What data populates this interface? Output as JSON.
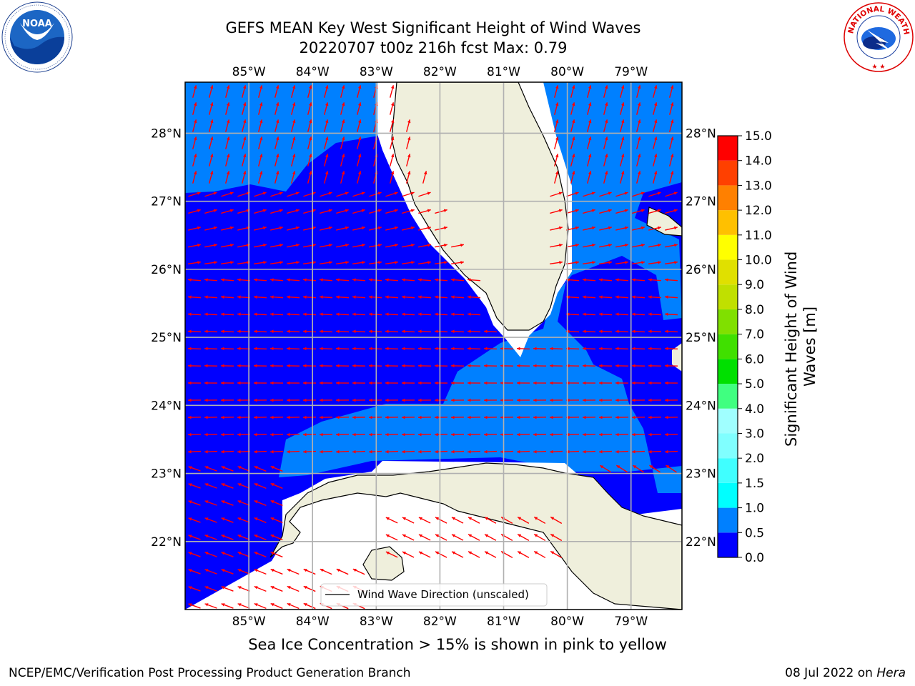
{
  "title": {
    "line1": "GEFS MEAN Key West Significant Height of Wind Waves",
    "line2": "20220707 t00z 216h fcst   Max: 0.79"
  },
  "map": {
    "lon_range": [
      -86.0,
      -78.2
    ],
    "lat_range": [
      21.0,
      28.75
    ],
    "lon_ticks": [
      {
        "value": -85,
        "label": "85°W"
      },
      {
        "value": -84,
        "label": "84°W"
      },
      {
        "value": -83,
        "label": "83°W"
      },
      {
        "value": -82,
        "label": "82°W"
      },
      {
        "value": -81,
        "label": "81°W"
      },
      {
        "value": -80,
        "label": "80°W"
      },
      {
        "value": -79,
        "label": "79°W"
      }
    ],
    "lat_ticks": [
      {
        "value": 22,
        "label": "22°N"
      },
      {
        "value": 23,
        "label": "23°N"
      },
      {
        "value": 24,
        "label": "24°N"
      },
      {
        "value": 25,
        "label": "25°N"
      },
      {
        "value": 26,
        "label": "26°N"
      },
      {
        "value": 27,
        "label": "27°N"
      },
      {
        "value": 28,
        "label": "28°N"
      }
    ],
    "gridlines": true,
    "legend_label": "Wind Wave Direction (unscaled)",
    "legend_placement": "bottom-center",
    "colors": {
      "ocean_low": "#0000ff",
      "ocean_mid": "#0080ff",
      "land": "#efefdc",
      "arrow": "#ff0000",
      "grid": "#b0b0b0"
    }
  },
  "colorbar": {
    "label": "Significant Height of Wind Waves [m]",
    "label_line1": "Significant Height of Wind",
    "label_line2": "Waves [m]",
    "ticks": [
      "0.0",
      "0.5",
      "1.0",
      "1.5",
      "2.0",
      "3.0",
      "4.0",
      "5.0",
      "6.0",
      "7.0",
      "8.0",
      "9.0",
      "10.0",
      "11.0",
      "12.0",
      "13.0",
      "14.0",
      "15.0"
    ],
    "colors": [
      "#0000ff",
      "#0080ff",
      "#00ffff",
      "#40ffff",
      "#80ffff",
      "#a0ffff",
      "#40ff80",
      "#00e000",
      "#40e000",
      "#80e000",
      "#c0e000",
      "#e0e000",
      "#ffff00",
      "#ffc000",
      "#ff8000",
      "#ff4000",
      "#ff0000"
    ]
  },
  "note": "Sea Ice Concentration > 15% is shown in pink to yellow",
  "credit_left": "NCEP/EMC/Verification Post Processing Product Generation Branch",
  "credit_date": "08 Jul 2022 on",
  "credit_host": "Hera",
  "logo_left": "NOAA",
  "logo_right": "NATIONAL WEATHER SERVICE"
}
